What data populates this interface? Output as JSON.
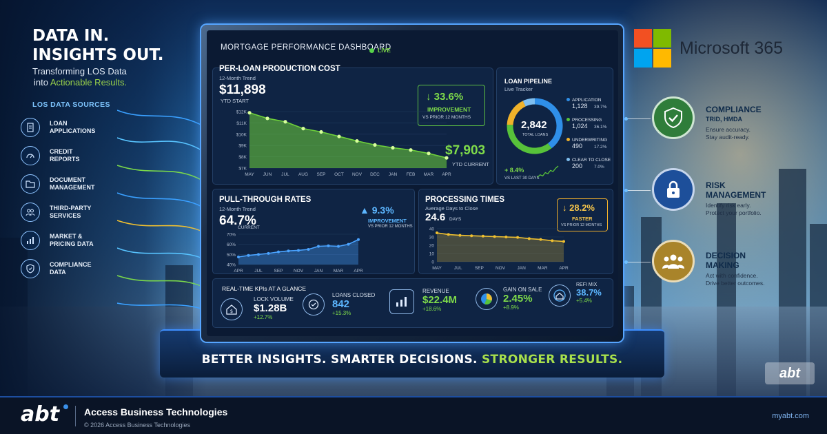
{
  "hero": {
    "headline_1": "DATA IN.",
    "headline_2": "INSIGHTS OUT.",
    "tagline_1": "Transforming LOS Data",
    "tagline_2a": "into ",
    "tagline_2b": "Actionable Results."
  },
  "sources": {
    "title": "LOS DATA SOURCES",
    "items": [
      {
        "label_1": "LOAN",
        "label_2": "APPLICATIONS",
        "icon": "document-icon"
      },
      {
        "label_1": "CREDIT",
        "label_2": "REPORTS",
        "icon": "gauge-icon"
      },
      {
        "label_1": "DOCUMENT",
        "label_2": "MANAGEMENT",
        "icon": "folder-icon"
      },
      {
        "label_1": "THIRD-PARTY",
        "label_2": "SERVICES",
        "icon": "people-icon"
      },
      {
        "label_1": "MARKET &",
        "label_2": "PRICING DATA",
        "icon": "bar-chart-icon"
      },
      {
        "label_1": "COMPLIANCE",
        "label_2": "DATA",
        "icon": "shield-icon"
      }
    ]
  },
  "dashboard": {
    "title": "MORTGAGE PERFORMANCE DASHBOARD",
    "live": "LIVE",
    "cost": {
      "title": "PER-LOAN PRODUCTION COST",
      "subtitle": "12-Month Trend",
      "start_value": "$11,898",
      "start_label": "YTD START",
      "end_value": "$7,903",
      "end_label": "YTD CURRENT",
      "improvement_value": "33.6%",
      "improvement_label": "IMPROVEMENT",
      "improvement_sub": "VS PRIOR 12 MONTHS"
    },
    "pipeline": {
      "title": "LOAN PIPELINE",
      "subtitle": "Live Tracker",
      "total": "2,842",
      "total_label": "TOTAL LOANS",
      "change": "+ 8.4%",
      "change_label": "VS LAST 30 DAYS",
      "segments": [
        {
          "name": "APPLICATION",
          "count": "1,128",
          "pct": "39.7%",
          "color": "#2f8fe8"
        },
        {
          "name": "PROCESSING",
          "count": "1,024",
          "pct": "36.1%",
          "color": "#57c23a"
        },
        {
          "name": "UNDERWRITING",
          "count": "490",
          "pct": "17.2%",
          "color": "#f0b22a"
        },
        {
          "name": "CLEAR TO CLOSE",
          "count": "200",
          "pct": "7.0%",
          "color": "#7fbff0"
        }
      ]
    },
    "pullthrough": {
      "title": "PULL-THROUGH RATES",
      "subtitle": "12-Month Trend",
      "value": "64.7%",
      "value_label": "CURRENT",
      "change": "9.3%",
      "change_label": "IMPROVEMENT",
      "change_sub": "VS PRIOR 12 MONTHS"
    },
    "processing": {
      "title": "PROCESSING TIMES",
      "subtitle": "Average Days to Close",
      "value": "24.6",
      "unit": "DAYS",
      "change": "28.2%",
      "change_label": "FASTER",
      "change_sub": "VS PRIOR 12 MONTHS"
    },
    "kpis": {
      "title": "REAL-TIME KPIs AT A GLANCE",
      "items": [
        {
          "label": "LOCK VOLUME",
          "value": "$1.28B",
          "change": "+12.7%",
          "icon": "house-dollar-icon"
        },
        {
          "label": "LOANS CLOSED",
          "value": "842",
          "change": "+15.3%",
          "icon": "check-circle-icon"
        },
        {
          "label": "REVENUE",
          "value": "$22.4M",
          "change": "+18.6%",
          "icon": "bar-chart-icon"
        },
        {
          "label": "GAIN ON SALE",
          "value": "2.45%",
          "change": "+8.9%",
          "icon": "pie-chart-icon"
        },
        {
          "label": "REFI MIX",
          "value": "38.7%",
          "change": "+5.4%",
          "icon": "home-refresh-icon"
        }
      ]
    }
  },
  "stand_text_a": "BETTER INSIGHTS. SMARTER DECISIONS. ",
  "stand_text_b": "STRONGER RESULTS.",
  "brand": {
    "name": "Microsoft 365"
  },
  "features": [
    {
      "title_1": "COMPLIANCE",
      "title_2": "TRID, HMDA",
      "desc_1": "Ensure accuracy.",
      "desc_2": "Stay audit-ready.",
      "icon": "shield-check-icon",
      "color": "#2f7d3a"
    },
    {
      "title_1": "RISK",
      "title_2": "MANAGEMENT",
      "desc_1": "Identify risk early.",
      "desc_2": "Protect your portfolio.",
      "icon": "lock-icon",
      "color": "#1d4f9a"
    },
    {
      "title_1": "DECISION",
      "title_2": "MAKING",
      "desc_1": "Act with confidence.",
      "desc_2": "Drive better outcomes.",
      "icon": "team-icon",
      "color": "#a9842a"
    }
  ],
  "watermark": "abt",
  "footer": {
    "logo": "abt",
    "company": "Access Business Technologies",
    "copyright": "© 2026 Access Business Technologies",
    "url": "myabt.com"
  },
  "chart_data": [
    {
      "type": "line",
      "title": "PER-LOAN PRODUCTION COST",
      "categories": [
        "MAY",
        "JUN",
        "JUL",
        "AUG",
        "SEP",
        "OCT",
        "NOV",
        "DEC",
        "JAN",
        "FEB",
        "MAR",
        "APR"
      ],
      "values": [
        11898,
        11400,
        11100,
        10500,
        10200,
        9800,
        9400,
        9050,
        8800,
        8600,
        8300,
        7903
      ],
      "y_ticks": [
        "$12K",
        "$11K",
        "$10K",
        "$9K",
        "$8K",
        "$7K"
      ],
      "ylim": [
        7000,
        12000
      ],
      "color": "#6fd13a"
    },
    {
      "type": "pie",
      "title": "LOAN PIPELINE",
      "categories": [
        "APPLICATION",
        "PROCESSING",
        "UNDERWRITING",
        "CLEAR TO CLOSE"
      ],
      "values": [
        39.7,
        36.1,
        17.2,
        7.0
      ]
    },
    {
      "type": "line",
      "title": "PULL-THROUGH RATES",
      "categories": [
        "APR",
        "MAY",
        "JUN",
        "JUL",
        "AUG",
        "SEP",
        "OCT",
        "NOV",
        "DEC",
        "JAN",
        "FEB",
        "MAR",
        "APR"
      ],
      "x_tick_labels": [
        "APR",
        "JUL",
        "SEP",
        "NOV",
        "JAN",
        "MAR",
        "APR"
      ],
      "values": [
        47.5,
        49,
        50,
        51,
        52.5,
        53.5,
        54,
        55,
        58,
        58.5,
        58,
        60,
        64.7
      ],
      "y_ticks": [
        "70%",
        "60%",
        "50%",
        "40%"
      ],
      "ylim": [
        40,
        70
      ],
      "color": "#4aa3ff"
    },
    {
      "type": "line",
      "title": "PROCESSING TIMES",
      "categories": [
        "MAY",
        "JUN",
        "JUL",
        "AUG",
        "SEP",
        "OCT",
        "NOV",
        "DEC",
        "JAN",
        "FEB",
        "MAR",
        "APR"
      ],
      "x_tick_labels": [
        "MAY",
        "JUL",
        "SEP",
        "NOV",
        "JAN",
        "MAR",
        "APR"
      ],
      "values": [
        35,
        33,
        32,
        31.5,
        31,
        30.5,
        30,
        29.5,
        28,
        27,
        25.5,
        24.6
      ],
      "y_ticks": [
        "40",
        "30",
        "20",
        "10",
        "0"
      ],
      "ylim": [
        0,
        40
      ],
      "color": "#f0c030"
    },
    {
      "type": "line",
      "title": "LOAN PIPELINE",
      "values": [
        1,
        2,
        1.5,
        3,
        2.5,
        4,
        3.5,
        5,
        6
      ],
      "color": "#57c23a"
    }
  ]
}
